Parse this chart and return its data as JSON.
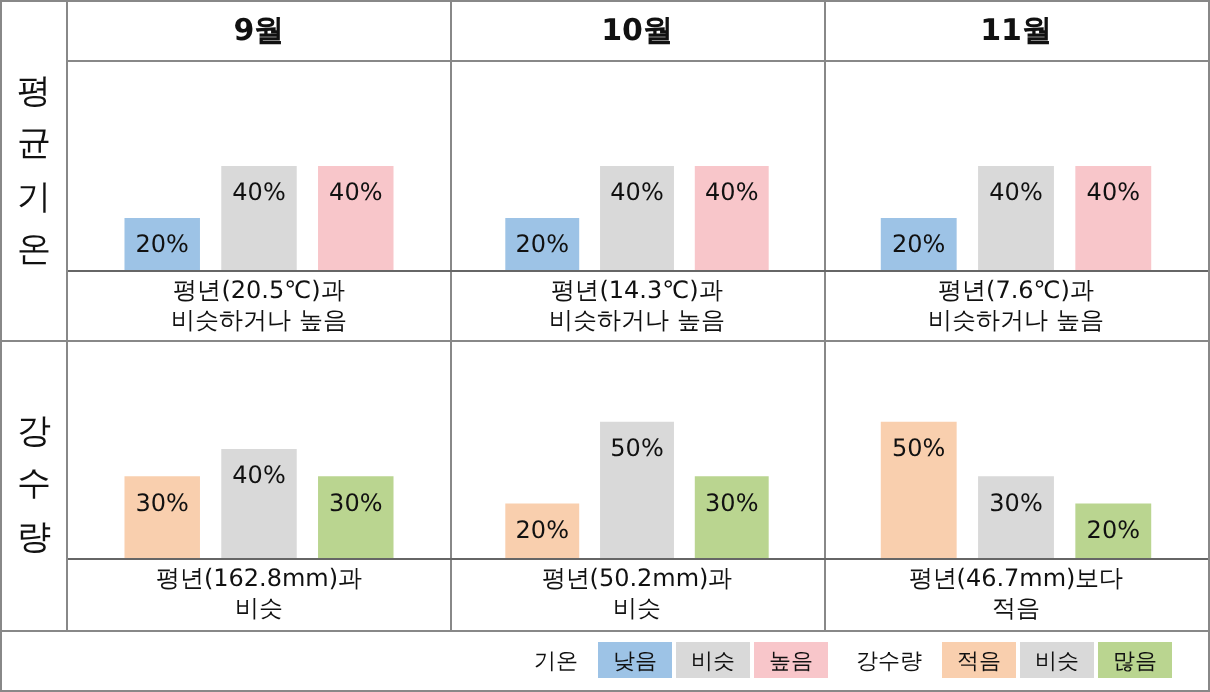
{
  "chart_data": [
    {
      "type": "bar",
      "title": "9월",
      "ylabel": "평균기온",
      "xlabel": "평년(20.5℃)과\n비슷하거나 높음",
      "categories": [
        null
      ],
      "tick_labels": false,
      "legend": "bottom",
      "legend_title": "기온",
      "series": [
        {
          "name": "낮음",
          "color": "#9dc3e6",
          "values": [
            20
          ],
          "value_labels": [
            "20%"
          ]
        },
        {
          "name": "비슷",
          "color": "#d9d9d9",
          "values": [
            40
          ],
          "value_labels": [
            "40%"
          ]
        },
        {
          "name": "높음",
          "color": "#f8c6ca",
          "values": [
            40
          ],
          "value_labels": [
            "40%"
          ]
        }
      ]
    },
    {
      "type": "bar",
      "title": "10월",
      "xlabel": "평년(14.3℃)과\n비슷하거나 높음",
      "categories": [
        null
      ],
      "tick_labels": false,
      "series": [
        {
          "color": "#9dc3e6",
          "values": [
            20
          ],
          "value_labels": [
            "20%"
          ]
        },
        {
          "color": "#d9d9d9",
          "values": [
            40
          ],
          "value_labels": [
            "40%"
          ]
        },
        {
          "color": "#f8c6ca",
          "values": [
            40
          ],
          "value_labels": [
            "40%"
          ]
        }
      ]
    },
    {
      "type": "bar",
      "title": "11월",
      "xlabel": "평년(7.6℃)과\n비슷하거나 높음",
      "categories": [
        null
      ],
      "tick_labels": false,
      "series": [
        {
          "color": "#9dc3e6",
          "values": [
            20
          ],
          "value_labels": [
            "20%"
          ]
        },
        {
          "color": "#d9d9d9",
          "values": [
            40
          ],
          "value_labels": [
            "40%"
          ]
        },
        {
          "color": "#f8c6ca",
          "values": [
            40
          ],
          "value_labels": [
            "40%"
          ]
        }
      ]
    },
    {
      "type": "bar",
      "ylabel": "강수량",
      "xlabel": "평년(162.8mm)과\n비슷",
      "categories": [
        null
      ],
      "tick_labels": false,
      "legend": "bottom",
      "legend_title": "강수량",
      "series": [
        {
          "name": "적음",
          "color": "#f9cfae",
          "values": [
            30
          ],
          "value_labels": [
            "30%"
          ]
        },
        {
          "name": "비슷",
          "color": "#d9d9d9",
          "values": [
            40
          ],
          "value_labels": [
            "40%"
          ]
        },
        {
          "name": "많음",
          "color": "#bad590",
          "values": [
            30
          ],
          "value_labels": [
            "30%"
          ]
        }
      ]
    },
    {
      "type": "bar",
      "xlabel": "평년(50.2mm)과\n비슷",
      "categories": [
        null
      ],
      "tick_labels": false,
      "series": [
        {
          "color": "#f9cfae",
          "values": [
            20
          ],
          "value_labels": [
            "20%"
          ]
        },
        {
          "color": "#d9d9d9",
          "values": [
            50
          ],
          "value_labels": [
            "50%"
          ]
        },
        {
          "color": "#bad590",
          "values": [
            30
          ],
          "value_labels": [
            "30%"
          ]
        }
      ]
    },
    {
      "type": "bar",
      "xlabel": "평년(46.7mm)보다\n적음",
      "categories": [
        null
      ],
      "tick_labels": false,
      "series": [
        {
          "color": "#f9cfae",
          "values": [
            50
          ],
          "value_labels": [
            "50%"
          ]
        },
        {
          "color": "#d9d9d9",
          "values": [
            30
          ],
          "value_labels": [
            "30%"
          ]
        },
        {
          "color": "#bad590",
          "values": [
            20
          ],
          "value_labels": [
            "20%"
          ]
        }
      ]
    }
  ]
}
